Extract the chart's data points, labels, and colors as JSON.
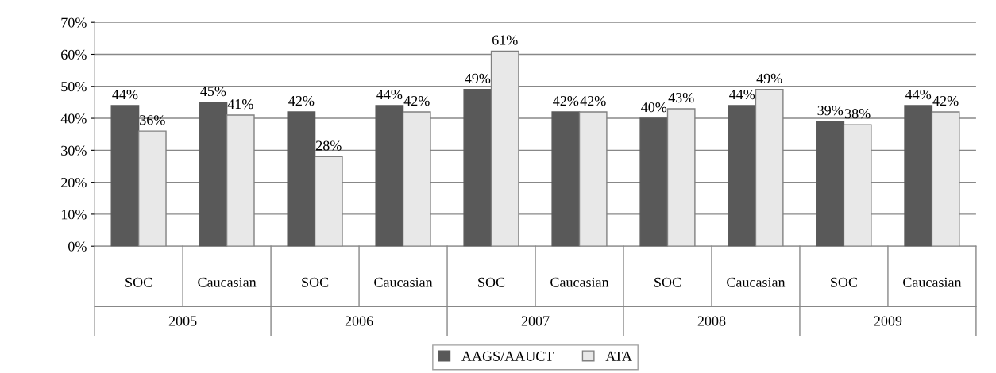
{
  "chart_data": {
    "type": "bar",
    "categories": [
      "SOC",
      "Caucasian",
      "SOC",
      "Caucasian",
      "SOC",
      "Caucasian",
      "SOC",
      "Caucasian",
      "SOC",
      "Caucasian"
    ],
    "series": [
      {
        "name": "AAGS/AAUCT",
        "color": "#595959",
        "values": [
          44,
          45,
          42,
          44,
          49,
          42,
          40,
          44,
          39,
          44
        ],
        "value_labels": [
          "44%",
          "45%",
          "42%",
          "44%",
          "49%",
          "42%",
          "40%",
          "44%",
          "39%",
          "44%"
        ]
      },
      {
        "name": "ATA",
        "color": "#e8e8e8",
        "values": [
          36,
          41,
          28,
          42,
          61,
          42,
          43,
          49,
          38,
          42
        ],
        "value_labels": [
          "36%",
          "41%",
          "28%",
          "42%",
          "61%",
          "42%",
          "43%",
          "49%",
          "38%",
          "42%"
        ]
      }
    ],
    "ylim": [
      0,
      70
    ],
    "yticks": [
      {
        "value": 0,
        "label": "0%"
      },
      {
        "value": 10,
        "label": "10%"
      },
      {
        "value": 20,
        "label": "20%"
      },
      {
        "value": 30,
        "label": "30%"
      },
      {
        "value": 40,
        "label": "40%"
      },
      {
        "value": 50,
        "label": "50%"
      },
      {
        "value": 60,
        "label": "60%"
      },
      {
        "value": 70,
        "label": "70%"
      }
    ],
    "annotations": [
      "2005",
      "2006",
      "2007",
      "2008",
      "2009"
    ],
    "grid": "y",
    "legend": "bottom"
  }
}
